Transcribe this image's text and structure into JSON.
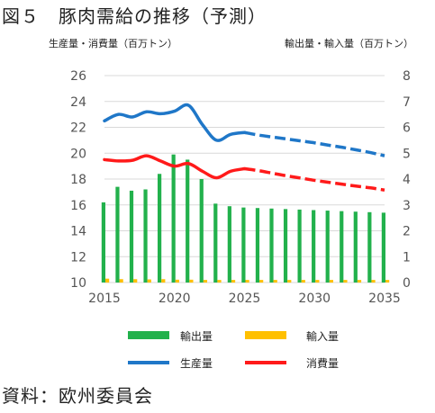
{
  "page": {
    "title": "図５　豚肉需給の推移（予測）",
    "left_axis_title": "生産量・消費量（百万トン）",
    "right_axis_title": "輸出量・輸入量（百万トン）",
    "source": "資料：欧州委員会"
  },
  "chart_data": {
    "type": "bar+line",
    "x_label_ticks": [
      "2015",
      "2020",
      "2025",
      "2030",
      "2035"
    ],
    "y_left": {
      "ticks": [
        "26",
        "24",
        "22",
        "20",
        "18",
        "16",
        "14",
        "12",
        "10"
      ],
      "range": [
        10,
        26
      ]
    },
    "y_right": {
      "ticks": [
        "8",
        "7",
        "6",
        "5",
        "4",
        "3",
        "2",
        "1",
        "0"
      ],
      "range": [
        0,
        8
      ]
    },
    "forecast_start_year": 2025,
    "years": [
      2015,
      2016,
      2017,
      2018,
      2019,
      2020,
      2021,
      2022,
      2023,
      2024,
      2025,
      2026,
      2027,
      2028,
      2029,
      2030,
      2031,
      2032,
      2033,
      2034,
      2035
    ],
    "series": [
      {
        "name": "輸出量",
        "axis": "right",
        "kind": "bar",
        "color": "#22b14c",
        "values": [
          3.1,
          3.7,
          3.55,
          3.6,
          4.2,
          4.95,
          4.75,
          4.0,
          3.05,
          2.95,
          2.9,
          2.88,
          2.86,
          2.84,
          2.82,
          2.8,
          2.78,
          2.76,
          2.74,
          2.72,
          2.7
        ]
      },
      {
        "name": "輸入量",
        "axis": "right",
        "kind": "bar",
        "color": "#ffc000",
        "values": [
          0.15,
          0.13,
          0.13,
          0.12,
          0.13,
          0.11,
          0.11,
          0.1,
          0.1,
          0.1,
          0.1,
          0.1,
          0.1,
          0.1,
          0.1,
          0.1,
          0.1,
          0.1,
          0.1,
          0.1,
          0.1
        ]
      },
      {
        "name": "生産量",
        "axis": "left",
        "kind": "line",
        "color": "#1f77c8",
        "values": [
          22.5,
          23.0,
          22.8,
          23.2,
          23.05,
          23.25,
          23.7,
          22.2,
          21.0,
          21.45,
          21.6,
          21.4,
          21.25,
          21.1,
          20.95,
          20.8,
          20.62,
          20.45,
          20.25,
          20.05,
          19.8
        ]
      },
      {
        "name": "消費量",
        "axis": "left",
        "kind": "line",
        "color": "#ff1a1a",
        "values": [
          19.5,
          19.4,
          19.45,
          19.8,
          19.4,
          19.0,
          19.2,
          18.6,
          18.1,
          18.6,
          18.8,
          18.65,
          18.45,
          18.25,
          18.08,
          17.9,
          17.75,
          17.6,
          17.45,
          17.32,
          17.15
        ]
      }
    ],
    "legend": [
      "輸出量",
      "輸入量",
      "生産量",
      "消費量"
    ]
  }
}
